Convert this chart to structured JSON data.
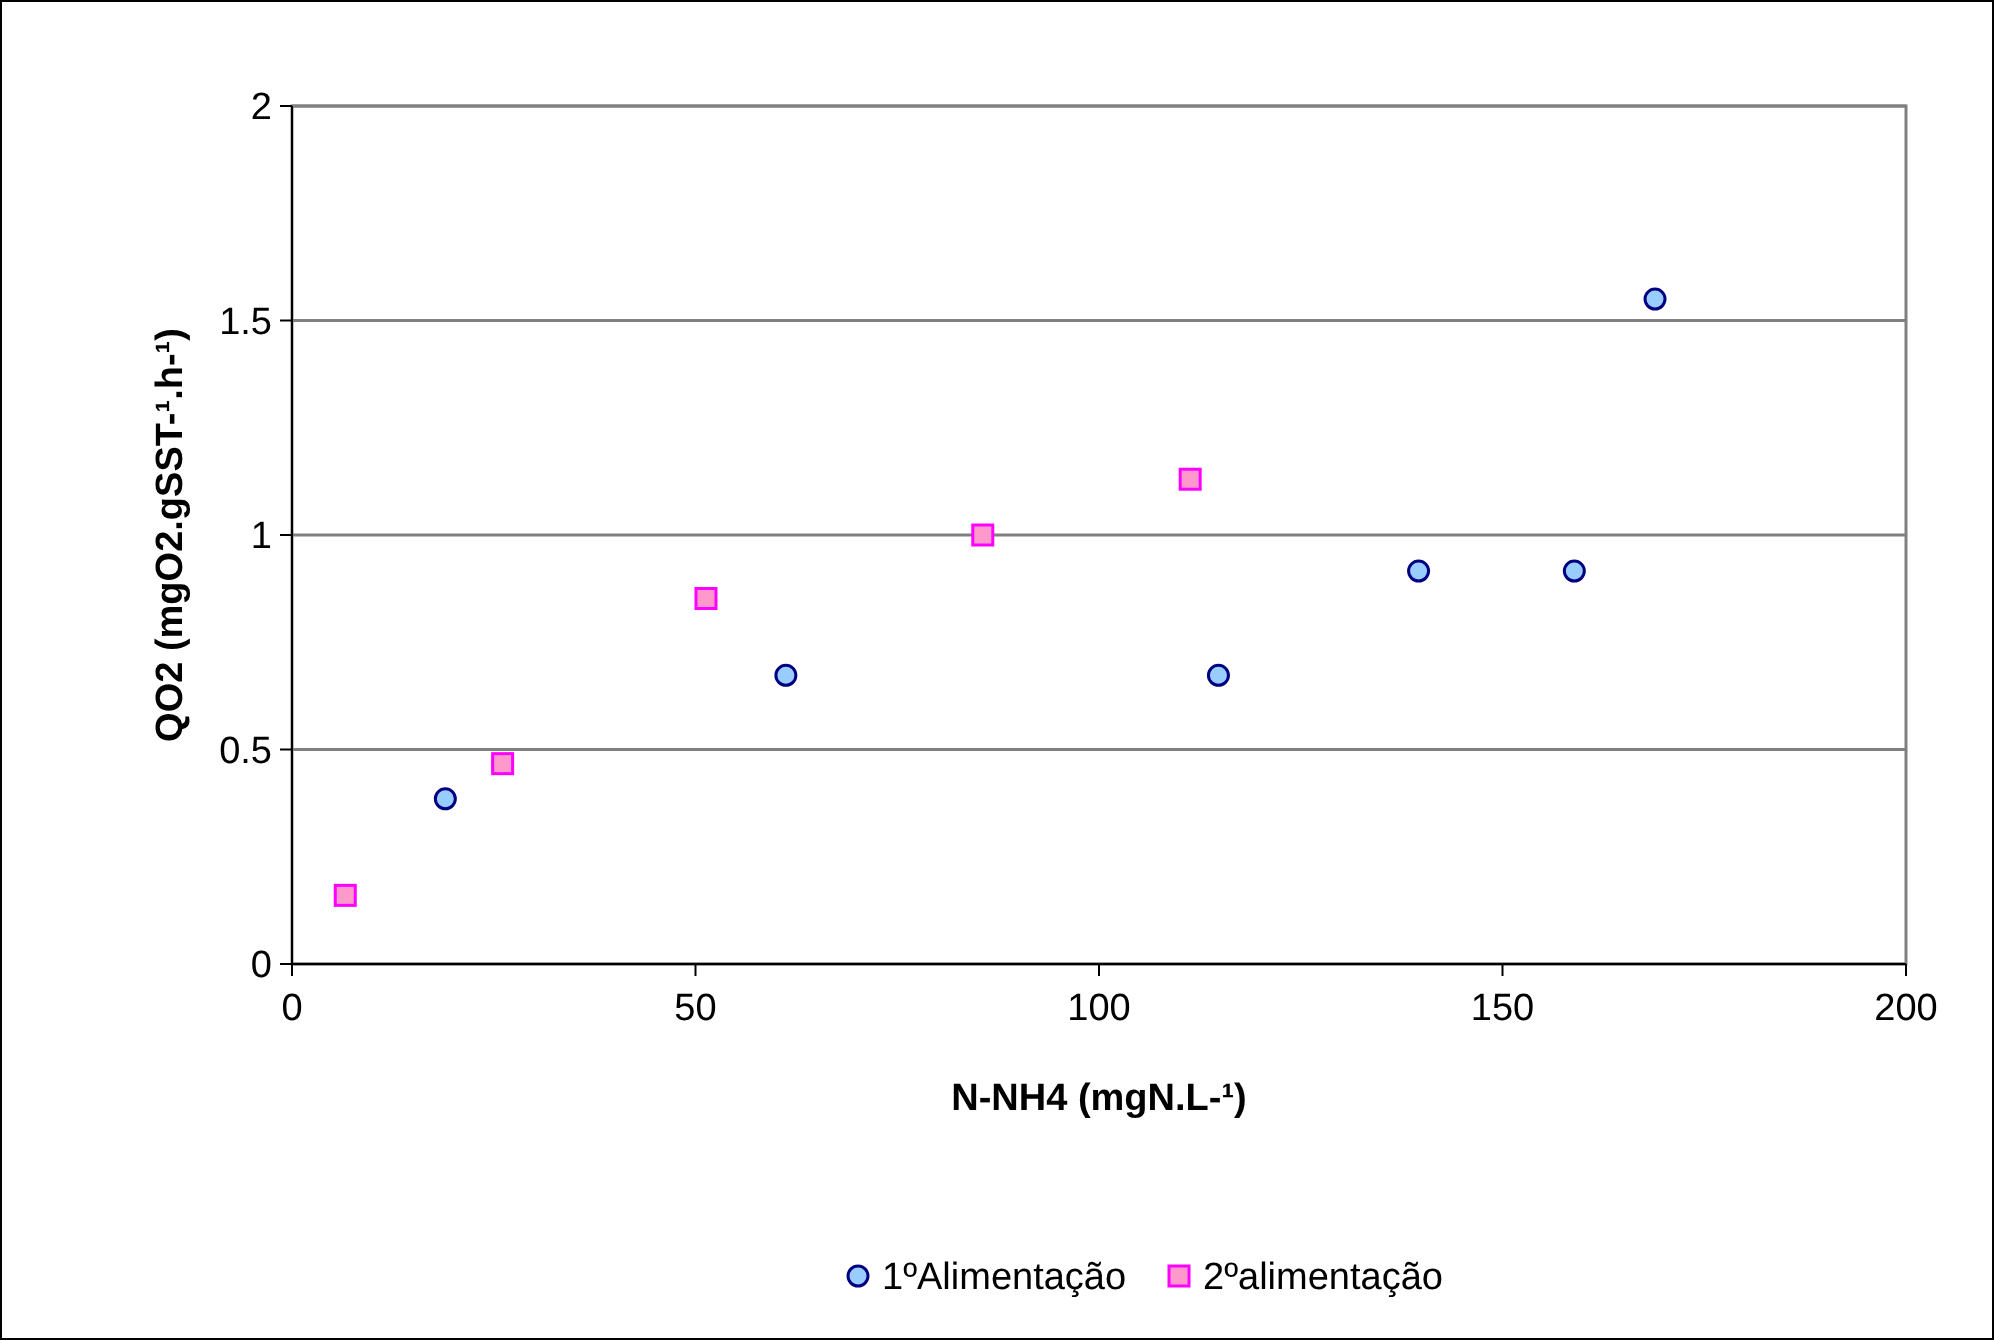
{
  "chart_data": {
    "type": "scatter",
    "xlabel": "N-NH4 (mgN.L-¹)",
    "ylabel": "QO2 (mgO2.gSST-¹.h-¹)",
    "xlim": [
      0,
      200
    ],
    "xticks": [
      0,
      50,
      100,
      150,
      200
    ],
    "ylim": [
      0,
      2
    ],
    "yticks": [
      0,
      0.5,
      1,
      1.5,
      2
    ],
    "grid": "y",
    "legend": "bottom",
    "series": [
      {
        "name": "1ºAlimentação",
        "color": "#99ccff",
        "marker": "circle",
        "x": [
          19,
          61.2,
          114.8,
          139.6,
          158.9,
          168.9
        ],
        "values": [
          0.385,
          0.673,
          0.673,
          0.916,
          0.916,
          1.55
        ]
      },
      {
        "name": "2ºalimentação",
        "color": "#ff99cc",
        "marker": "square",
        "x": [
          6.6,
          26.1,
          51.3,
          85.6,
          111.3
        ],
        "values": [
          0.16,
          0.467,
          0.852,
          1.0,
          1.13
        ]
      }
    ]
  }
}
